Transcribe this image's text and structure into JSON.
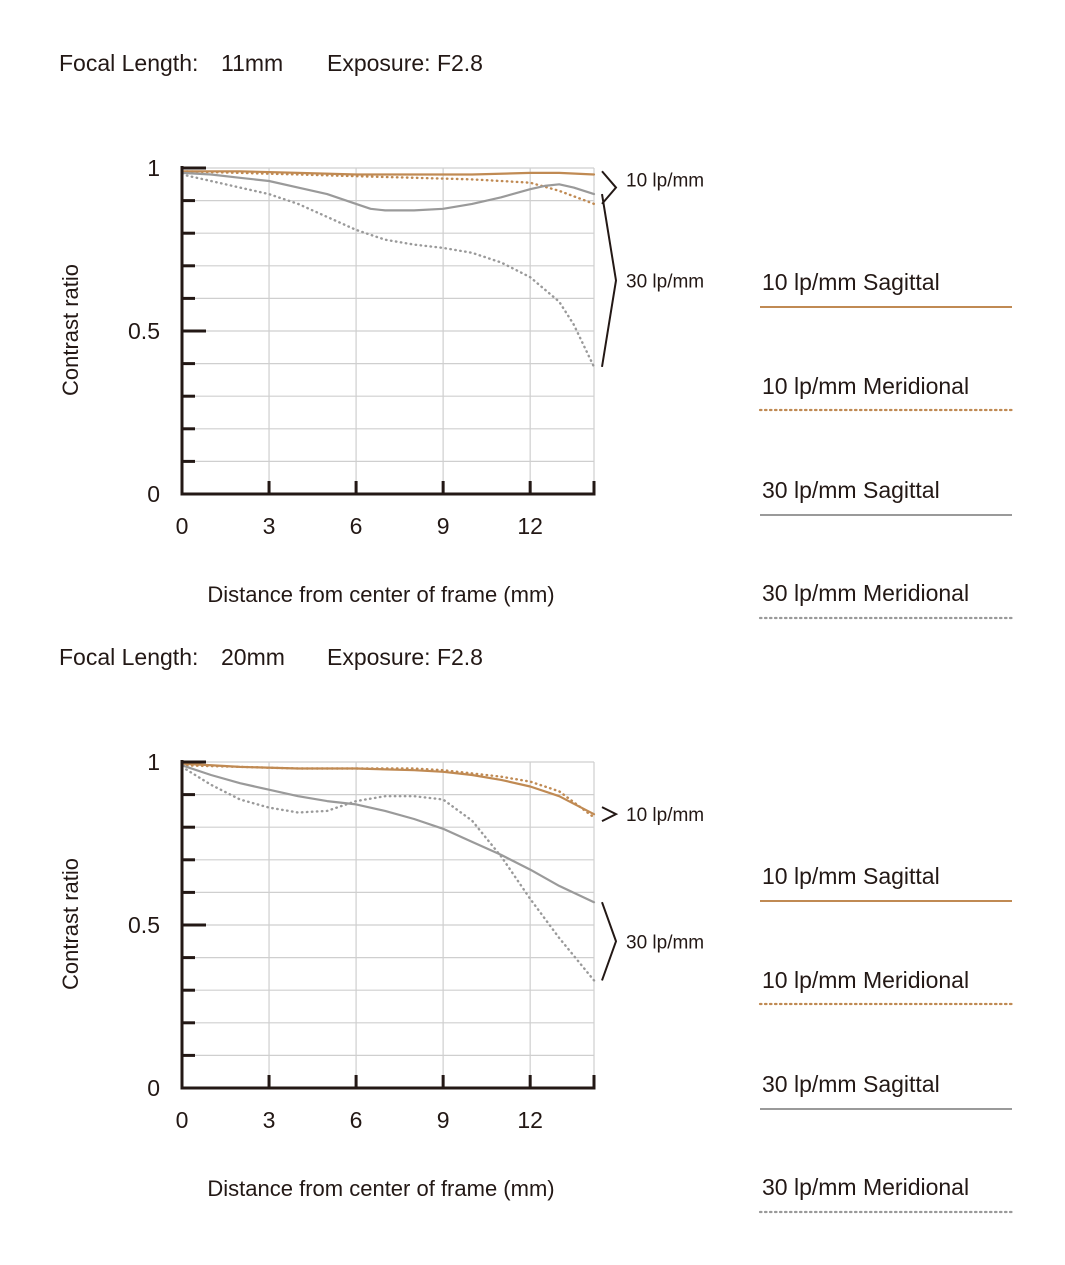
{
  "colors": {
    "tan": "#c08a53",
    "gray": "#9a9a9a",
    "axis": "#231815",
    "grid": "#cfcfcf"
  },
  "chart_data": [
    {
      "type": "line",
      "title_parts": [
        "Focal Length:",
        "11mm",
        "Exposure: F2.8"
      ],
      "xlabel": "Distance from center of frame (mm)",
      "ylabel": "Contrast ratio",
      "xlim": [
        0,
        14.2
      ],
      "ylim": [
        0,
        1
      ],
      "xticks": [
        0,
        3,
        6,
        9,
        12
      ],
      "yticks": [
        {
          "v": 0,
          "label": "0"
        },
        {
          "v": 0.5,
          "label": "0.5"
        },
        {
          "v": 1,
          "label": "1"
        }
      ],
      "grid": true,
      "group_labels": [
        {
          "text": "10 lp/mm",
          "y_top": 0.99,
          "y_bottom": 0.89
        },
        {
          "text": "30 lp/mm",
          "y_top": 0.92,
          "y_bottom": 0.39
        }
      ],
      "series": [
        {
          "name": "10 lp/mm Sagittal",
          "color": "tan",
          "dash": false,
          "x": [
            0,
            2,
            4,
            6,
            8,
            10,
            12,
            13,
            14.2
          ],
          "y": [
            0.99,
            0.99,
            0.985,
            0.98,
            0.98,
            0.98,
            0.985,
            0.985,
            0.98
          ]
        },
        {
          "name": "10 lp/mm Meridional",
          "color": "tan",
          "dash": true,
          "x": [
            0,
            2,
            4,
            6,
            8,
            10,
            11,
            12,
            13,
            14.2
          ],
          "y": [
            0.99,
            0.985,
            0.98,
            0.975,
            0.97,
            0.965,
            0.96,
            0.955,
            0.93,
            0.89
          ]
        },
        {
          "name": "30 lp/mm Sagittal",
          "color": "gray",
          "dash": false,
          "x": [
            0,
            1,
            2,
            3,
            4,
            5,
            6,
            6.5,
            7,
            8,
            9,
            10,
            11,
            12,
            12.5,
            13,
            13.5,
            14.2
          ],
          "y": [
            0.985,
            0.98,
            0.97,
            0.96,
            0.94,
            0.92,
            0.89,
            0.875,
            0.87,
            0.87,
            0.875,
            0.89,
            0.91,
            0.935,
            0.945,
            0.95,
            0.94,
            0.92
          ]
        },
        {
          "name": "30 lp/mm Meridional",
          "color": "gray",
          "dash": true,
          "x": [
            0,
            1,
            2,
            3,
            4,
            5,
            6,
            7,
            8,
            9,
            10,
            11,
            12,
            13,
            13.5,
            14.2
          ],
          "y": [
            0.98,
            0.96,
            0.94,
            0.92,
            0.89,
            0.85,
            0.81,
            0.78,
            0.765,
            0.755,
            0.74,
            0.71,
            0.665,
            0.59,
            0.52,
            0.39
          ]
        }
      ]
    },
    {
      "type": "line",
      "title_parts": [
        "Focal Length:",
        "20mm",
        "Exposure: F2.8"
      ],
      "xlabel": "Distance from center of frame (mm)",
      "ylabel": "Contrast ratio",
      "xlim": [
        0,
        14.2
      ],
      "ylim": [
        0,
        1
      ],
      "xticks": [
        0,
        3,
        6,
        9,
        12
      ],
      "yticks": [
        {
          "v": 0,
          "label": "0"
        },
        {
          "v": 0.5,
          "label": "0.5"
        },
        {
          "v": 1,
          "label": "1"
        }
      ],
      "grid": true,
      "group_labels": [
        {
          "text": "10 lp/mm",
          "y_top": 0.84,
          "y_bottom": 0.84,
          "single": true
        },
        {
          "text": "30 lp/mm",
          "y_top": 0.57,
          "y_bottom": 0.33
        }
      ],
      "series": [
        {
          "name": "10 lp/mm Sagittal",
          "color": "tan",
          "dash": false,
          "x": [
            0,
            2,
            4,
            6,
            8,
            9,
            10,
            11,
            12,
            13,
            14.2
          ],
          "y": [
            0.995,
            0.985,
            0.98,
            0.98,
            0.975,
            0.97,
            0.96,
            0.945,
            0.925,
            0.895,
            0.84
          ]
        },
        {
          "name": "10 lp/mm Meridional",
          "color": "tan",
          "dash": true,
          "x": [
            0,
            2,
            4,
            6,
            8,
            9,
            10,
            11,
            12,
            13,
            14.2
          ],
          "y": [
            0.99,
            0.985,
            0.98,
            0.98,
            0.98,
            0.975,
            0.965,
            0.955,
            0.94,
            0.91,
            0.83
          ]
        },
        {
          "name": "30 lp/mm Sagittal",
          "color": "gray",
          "dash": false,
          "x": [
            0,
            1,
            2,
            3,
            4,
            5,
            6,
            7,
            8,
            9,
            10,
            11,
            12,
            13,
            14.2
          ],
          "y": [
            0.99,
            0.96,
            0.935,
            0.915,
            0.895,
            0.88,
            0.87,
            0.85,
            0.825,
            0.795,
            0.755,
            0.715,
            0.67,
            0.62,
            0.57
          ]
        },
        {
          "name": "30 lp/mm Meridional",
          "color": "gray",
          "dash": true,
          "x": [
            0,
            1,
            2,
            3,
            4,
            5,
            6,
            7,
            8,
            9,
            10,
            11,
            12,
            13,
            14.2
          ],
          "y": [
            0.985,
            0.93,
            0.885,
            0.86,
            0.845,
            0.85,
            0.88,
            0.895,
            0.895,
            0.885,
            0.82,
            0.71,
            0.58,
            0.46,
            0.33
          ]
        }
      ]
    }
  ],
  "legends": [
    [
      "10 lp/mm Sagittal",
      "10 lp/mm Meridional",
      "30 lp/mm Sagittal",
      "30 lp/mm Meridional"
    ],
    [
      "10 lp/mm Sagittal",
      "10 lp/mm Meridional",
      "30 lp/mm Sagittal",
      "30 lp/mm Meridional"
    ]
  ]
}
